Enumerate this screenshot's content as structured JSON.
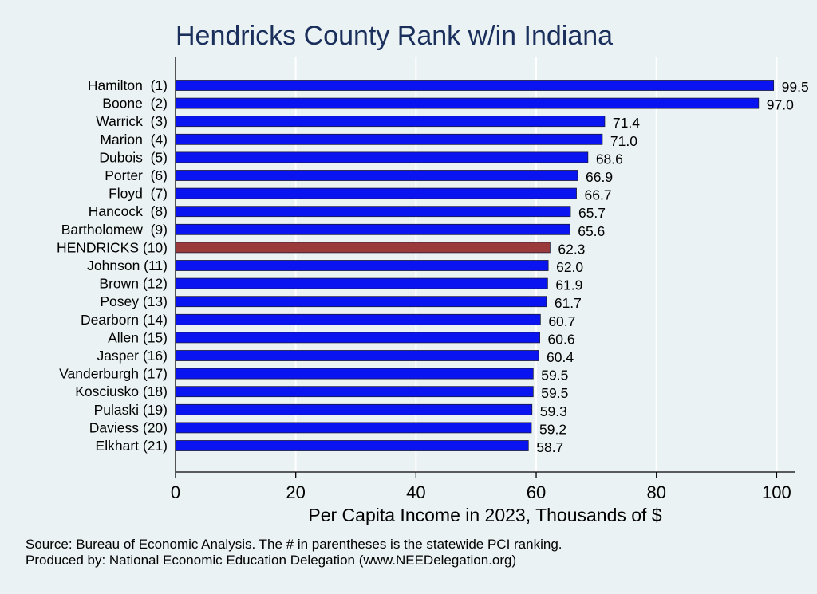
{
  "chart_data": {
    "type": "bar",
    "orientation": "horizontal",
    "title": "Hendricks County Rank w/in Indiana",
    "xlabel": "Per Capita Income in 2023, Thousands of $",
    "categories": [
      "Hamilton  (1)",
      "Boone  (2)",
      "Warrick  (3)",
      "Marion  (4)",
      "Dubois  (5)",
      "Porter  (6)",
      "Floyd  (7)",
      "Hancock  (8)",
      "Bartholomew  (9)",
      "HENDRICKS (10)",
      "Johnson (11)",
      "Brown (12)",
      "Posey (13)",
      "Dearborn (14)",
      "Allen (15)",
      "Jasper (16)",
      "Vanderburgh (17)",
      "Kosciusko (18)",
      "Pulaski (19)",
      "Daviess (20)",
      "Elkhart (21)"
    ],
    "values": [
      99.5,
      97.0,
      71.4,
      71.0,
      68.6,
      66.9,
      66.7,
      65.7,
      65.6,
      62.3,
      62.0,
      61.9,
      61.7,
      60.7,
      60.6,
      60.4,
      59.5,
      59.5,
      59.3,
      59.2,
      58.7
    ],
    "value_labels": [
      "99.5",
      "97.0",
      "71.4",
      "71.0",
      "68.6",
      "66.9",
      "66.7",
      "65.7",
      "65.6",
      "62.3",
      "62.0",
      "61.9",
      "61.7",
      "60.7",
      "60.6",
      "60.4",
      "59.5",
      "59.5",
      "59.3",
      "59.2",
      "58.7"
    ],
    "highlight_index": 9,
    "xlim": [
      0,
      103
    ],
    "xticks": [
      0,
      20,
      40,
      60,
      80,
      100
    ],
    "grid": true,
    "colors": {
      "bar": "#0a14f0",
      "highlight": "#9b3a3a",
      "grid": "#ffffff",
      "axis": "#000000"
    }
  },
  "notes": {
    "source": "Source: Bureau of Economic Analysis. The # in parentheses is the statewide PCI ranking.",
    "produced_by": "Produced by: National Economic Education Delegation (www.NEEDelegation.org)"
  }
}
